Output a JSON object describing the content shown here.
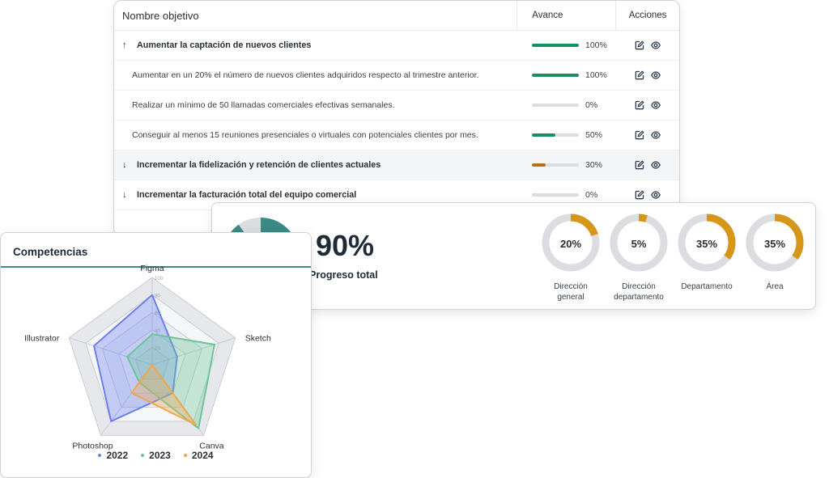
{
  "objectives": {
    "header": {
      "name": "Nombre objetivo",
      "progress": "Avance",
      "actions": "Acciones"
    },
    "rows": [
      {
        "type": "parent",
        "arrow": "↑",
        "text": "Aumentar la captación de nuevos clientes",
        "pct": "100%",
        "value": 100,
        "color": "#13915f",
        "shaded": false
      },
      {
        "type": "child",
        "arrow": "",
        "text": "Aumentar en un 20% el número de nuevos clientes adquiridos respecto al trimestre anterior.",
        "pct": "100%",
        "value": 100,
        "color": "#13915f",
        "shaded": false
      },
      {
        "type": "child",
        "arrow": "",
        "text": "Realizar un mínimo de 50 llamadas comerciales efectivas semanales.",
        "pct": "0%",
        "value": 0,
        "color": "#13915f",
        "shaded": false
      },
      {
        "type": "child",
        "arrow": "",
        "text": "Conseguir al menos 15 reuniones presenciales o virtuales con potenciales clientes por mes.",
        "pct": "50%",
        "value": 50,
        "color": "#13915f",
        "shaded": false
      },
      {
        "type": "parent",
        "arrow": "↓",
        "text": "Incrementar la fidelización y retención de clientes actuales",
        "pct": "30%",
        "value": 30,
        "color": "#b5730f",
        "shaded": true
      },
      {
        "type": "parent",
        "arrow": "↓",
        "text": "Incrementar la facturación total del equipo comercial",
        "pct": "0%",
        "value": 0,
        "color": "#13915f",
        "shaded": false
      }
    ]
  },
  "progress": {
    "total_value": "90%",
    "total_fraction": 0.9,
    "total_label": "Progreso total",
    "total_color": "#3a8a85",
    "items": [
      {
        "value": "20%",
        "fraction": 0.2,
        "label1": "Dirección",
        "label2": "general"
      },
      {
        "value": "5%",
        "fraction": 0.05,
        "label1": "Dirección",
        "label2": "departamento"
      },
      {
        "value": "35%",
        "fraction": 0.35,
        "label1": "Departamento",
        "label2": ""
      },
      {
        "value": "35%",
        "fraction": 0.35,
        "label1": "Área",
        "label2": ""
      }
    ],
    "mini_color": "#d6961a"
  },
  "competencias": {
    "title": "Competencias",
    "chart_data": {
      "type": "radar",
      "axes": [
        "Figma",
        "Sketch",
        "Canva",
        "Photoshop",
        "Illustrator"
      ],
      "tick_labels": [
        "20",
        "40",
        "60",
        "80",
        "100"
      ],
      "max": 100,
      "series": [
        {
          "name": "2022",
          "values": [
            80,
            30,
            40,
            80,
            70
          ],
          "color": "#6b7ff0"
        },
        {
          "name": "2023",
          "values": [
            35,
            75,
            90,
            25,
            30
          ],
          "color": "#6cc59a"
        },
        {
          "name": "2024",
          "values": [
            0,
            0,
            85,
            40,
            0
          ],
          "color": "#f0a64a"
        }
      ]
    }
  }
}
